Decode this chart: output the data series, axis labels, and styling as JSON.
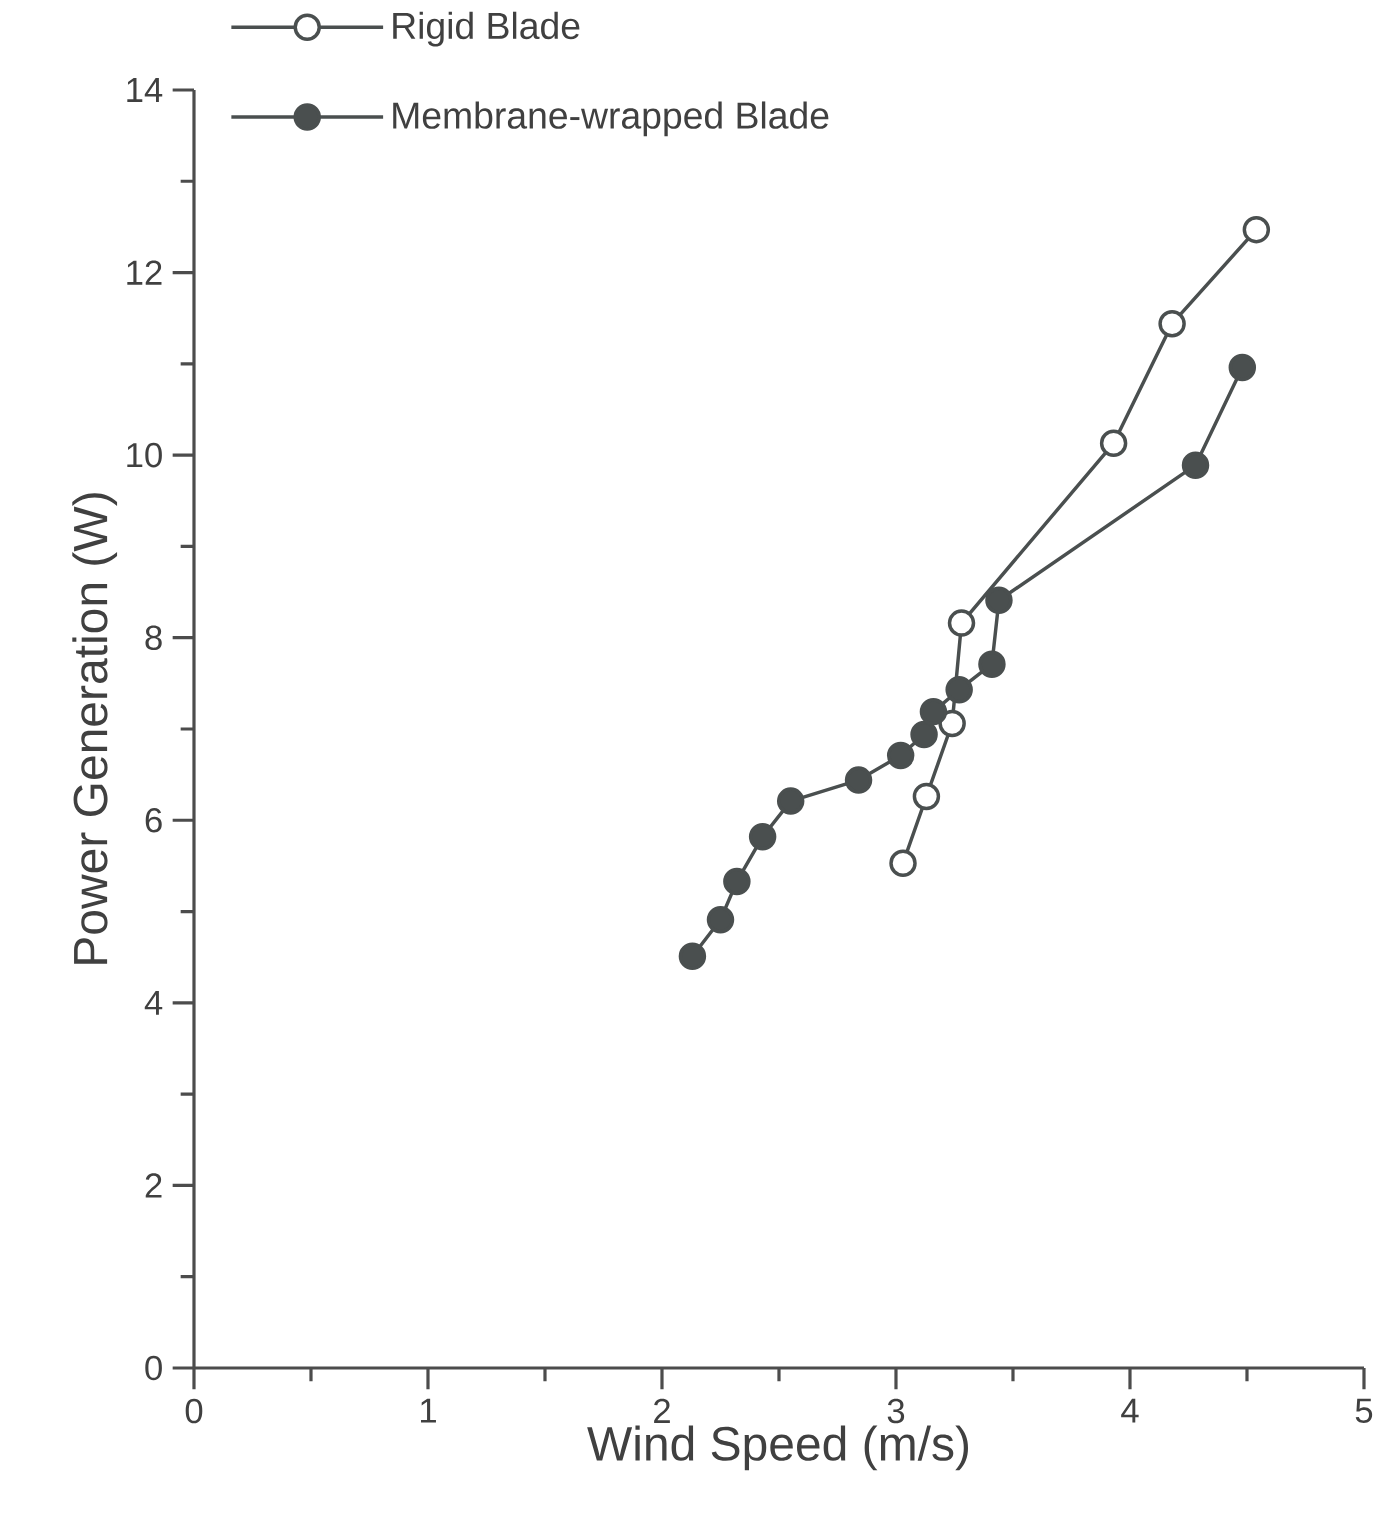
{
  "chart_data": {
    "type": "line",
    "xlabel": "Wind Speed (m/s)",
    "ylabel": "Power Generation (W)",
    "xlim": [
      0,
      5
    ],
    "xticks": [
      0,
      1,
      2,
      3,
      4,
      5
    ],
    "ylim": [
      0,
      14
    ],
    "yticks": [
      0,
      2,
      4,
      6,
      8,
      10,
      12,
      14
    ],
    "grid": false,
    "legend": "top left",
    "marker": "circle",
    "line_style": "solid",
    "series": [
      {
        "name": "Rigid Blade",
        "color": "#4a4f4f",
        "x": [
          3.03,
          3.13,
          3.24,
          3.28,
          3.93,
          4.18,
          4.54
        ],
        "values": [
          5.53,
          6.26,
          7.06,
          8.16,
          10.13,
          11.44,
          12.47
        ]
      },
      {
        "name": "Membrane-wrapped Blade",
        "color": "#4a4f4f",
        "x": [
          2.13,
          2.25,
          2.32,
          2.43,
          2.55,
          2.84,
          3.02,
          3.12,
          3.16,
          3.27,
          3.41,
          3.44,
          4.28,
          4.48
        ],
        "values": [
          4.51,
          4.91,
          5.33,
          5.82,
          6.21,
          6.44,
          6.71,
          6.94,
          7.19,
          7.43,
          7.71,
          8.41,
          9.89,
          10.96
        ]
      }
    ]
  }
}
